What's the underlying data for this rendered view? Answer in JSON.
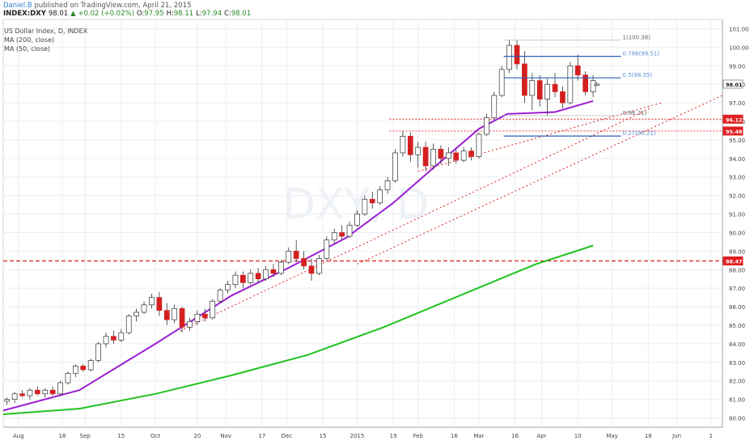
{
  "header": {
    "author": "Daniel.B",
    "published": "published on TradingView.com, April 21, 2015",
    "symbol": "INDEX:DXY",
    "last": "98.01",
    "change": "▲ +0.02 (+0.02%)",
    "o_label": "O:",
    "o": "97.95",
    "h_label": "H:",
    "h": "98.11",
    "l_label": "L:",
    "l": "97.94",
    "c_label": "C:",
    "c": "98.01"
  },
  "legend": {
    "title": "US Dollar Index, D, INDEX",
    "ma200": "MA (200, close)",
    "ma50": "MA (50, close)"
  },
  "watermark": "DXY, D",
  "colors": {
    "up": "#ffffff",
    "down": "#d42020",
    "wick": "#333333",
    "ma50": "#9b1fd3",
    "ma200": "#1fc21f",
    "hline": "#e02020",
    "fib": "#2a5fb8",
    "fib_label": "#5b8fd8",
    "grid": "#e9eef3"
  },
  "chart_data": {
    "type": "candlestick",
    "title": "US Dollar Index, D, INDEX",
    "xlabel": "",
    "ylabel": "",
    "ylim": [
      79.5,
      101.5
    ],
    "yticks": [
      80.0,
      81.0,
      82.0,
      83.0,
      84.0,
      85.0,
      86.0,
      87.0,
      88.0,
      89.0,
      90.0,
      91.0,
      92.0,
      93.0,
      94.0,
      95.0,
      96.0,
      97.0,
      98.0,
      99.0,
      100.0,
      101.0
    ],
    "xticks": [
      "Aug",
      "18",
      "Sep",
      "15",
      "Oct",
      "20",
      "Nov",
      "17",
      "Dec",
      "15",
      "2015",
      "19",
      "Feb",
      "16",
      "Mar",
      "16",
      "Apr",
      "10",
      "May",
      "18",
      "Jun",
      "1"
    ],
    "xtick_pos": [
      8,
      31,
      43,
      62,
      80,
      102,
      117,
      136,
      149,
      168,
      186,
      205,
      218,
      237,
      250,
      269,
      283,
      302,
      320,
      339,
      354,
      372
    ],
    "x_range": [
      0,
      378
    ],
    "last_bar": 312,
    "price_marks": [
      {
        "label": "98.01",
        "value": 98.01,
        "style": "last"
      },
      {
        "label": "96.12",
        "value": 96.12,
        "style": "red"
      },
      {
        "label": "95.48",
        "value": 95.48,
        "style": "red"
      },
      {
        "label": "88.47",
        "value": 88.47,
        "style": "red"
      }
    ],
    "horizontal_lines": [
      {
        "value": 96.12,
        "from": 203
      },
      {
        "value": 95.48,
        "from": 203
      },
      {
        "value": 88.47,
        "from": 0
      }
    ],
    "trendlines": [
      {
        "x1": 93,
        "y1": 84.7,
        "x2": 340,
        "y2": 96.7
      },
      {
        "x1": 218,
        "y1": 93.3,
        "x2": 346,
        "y2": 97.0
      },
      {
        "x1": 186,
        "y1": 88.3,
        "x2": 378,
        "y2": 97.4
      }
    ],
    "fib_levels": [
      {
        "label": "1(100.38)",
        "value": 100.38,
        "from": 263
      },
      {
        "label": "0.786(99.51)",
        "value": 99.51,
        "from": 263
      },
      {
        "label": "0.5(98.35)",
        "value": 98.35,
        "from": 263
      },
      {
        "label": "0(96.31)",
        "value": 96.31,
        "from": 263
      },
      {
        "label": "0.27(95.21)",
        "value": 95.21,
        "from": 263
      }
    ],
    "ma50": {
      "name": "MA (50, close)",
      "x": [
        0,
        40,
        80,
        120,
        150,
        180,
        205,
        225,
        250,
        265,
        290,
        310
      ],
      "y": [
        80.4,
        81.5,
        84.0,
        86.6,
        88.1,
        89.7,
        91.6,
        93.4,
        95.6,
        96.4,
        96.5,
        97.1
      ]
    },
    "ma200": {
      "name": "MA (200, close)",
      "x": [
        0,
        40,
        80,
        120,
        160,
        200,
        240,
        280,
        310
      ],
      "y": [
        80.2,
        80.5,
        81.3,
        82.3,
        83.4,
        84.9,
        86.6,
        88.3,
        89.3
      ]
    },
    "candles": [
      {
        "x": 2,
        "o": 80.9,
        "h": 81.1,
        "l": 80.7,
        "c": 81.0
      },
      {
        "x": 6,
        "o": 81.0,
        "h": 81.4,
        "l": 80.8,
        "c": 81.3
      },
      {
        "x": 10,
        "o": 81.3,
        "h": 81.5,
        "l": 81.1,
        "c": 81.2
      },
      {
        "x": 14,
        "o": 81.2,
        "h": 81.6,
        "l": 81.0,
        "c": 81.5
      },
      {
        "x": 18,
        "o": 81.5,
        "h": 81.7,
        "l": 81.2,
        "c": 81.3
      },
      {
        "x": 22,
        "o": 81.3,
        "h": 81.6,
        "l": 81.1,
        "c": 81.5
      },
      {
        "x": 26,
        "o": 81.5,
        "h": 81.7,
        "l": 81.2,
        "c": 81.3
      },
      {
        "x": 30,
        "o": 81.3,
        "h": 82.0,
        "l": 81.2,
        "c": 81.9
      },
      {
        "x": 34,
        "o": 81.9,
        "h": 82.5,
        "l": 81.8,
        "c": 82.4
      },
      {
        "x": 38,
        "o": 82.4,
        "h": 82.9,
        "l": 82.2,
        "c": 82.8
      },
      {
        "x": 42,
        "o": 82.8,
        "h": 82.9,
        "l": 82.5,
        "c": 82.6
      },
      {
        "x": 46,
        "o": 82.6,
        "h": 83.2,
        "l": 82.5,
        "c": 83.1
      },
      {
        "x": 50,
        "o": 83.1,
        "h": 84.1,
        "l": 83.0,
        "c": 84.0
      },
      {
        "x": 54,
        "o": 84.0,
        "h": 84.6,
        "l": 83.8,
        "c": 84.4
      },
      {
        "x": 58,
        "o": 84.4,
        "h": 84.7,
        "l": 84.0,
        "c": 84.2
      },
      {
        "x": 62,
        "o": 84.2,
        "h": 84.8,
        "l": 84.1,
        "c": 84.6
      },
      {
        "x": 66,
        "o": 84.6,
        "h": 85.6,
        "l": 84.5,
        "c": 85.5
      },
      {
        "x": 70,
        "o": 85.5,
        "h": 85.9,
        "l": 85.2,
        "c": 85.7
      },
      {
        "x": 74,
        "o": 85.7,
        "h": 86.3,
        "l": 85.6,
        "c": 86.1
      },
      {
        "x": 78,
        "o": 86.1,
        "h": 86.7,
        "l": 85.9,
        "c": 86.5
      },
      {
        "x": 82,
        "o": 86.5,
        "h": 86.8,
        "l": 85.5,
        "c": 85.8
      },
      {
        "x": 86,
        "o": 85.8,
        "h": 86.2,
        "l": 85.0,
        "c": 85.3
      },
      {
        "x": 90,
        "o": 85.3,
        "h": 86.1,
        "l": 85.1,
        "c": 85.9
      },
      {
        "x": 94,
        "o": 85.9,
        "h": 86.0,
        "l": 84.6,
        "c": 84.9
      },
      {
        "x": 98,
        "o": 84.9,
        "h": 85.4,
        "l": 84.7,
        "c": 85.2
      },
      {
        "x": 102,
        "o": 85.2,
        "h": 85.8,
        "l": 85.0,
        "c": 85.6
      },
      {
        "x": 106,
        "o": 85.6,
        "h": 85.9,
        "l": 85.2,
        "c": 85.4
      },
      {
        "x": 110,
        "o": 85.4,
        "h": 86.4,
        "l": 85.3,
        "c": 86.3
      },
      {
        "x": 114,
        "o": 86.3,
        "h": 87.0,
        "l": 86.2,
        "c": 86.9
      },
      {
        "x": 118,
        "o": 86.9,
        "h": 87.4,
        "l": 86.7,
        "c": 87.2
      },
      {
        "x": 122,
        "o": 87.2,
        "h": 87.9,
        "l": 87.0,
        "c": 87.7
      },
      {
        "x": 126,
        "o": 87.7,
        "h": 87.9,
        "l": 87.0,
        "c": 87.3
      },
      {
        "x": 130,
        "o": 87.3,
        "h": 88.0,
        "l": 87.2,
        "c": 87.8
      },
      {
        "x": 134,
        "o": 87.8,
        "h": 88.1,
        "l": 87.3,
        "c": 87.5
      },
      {
        "x": 138,
        "o": 87.5,
        "h": 88.2,
        "l": 87.4,
        "c": 88.0
      },
      {
        "x": 142,
        "o": 88.0,
        "h": 88.3,
        "l": 87.6,
        "c": 87.8
      },
      {
        "x": 146,
        "o": 87.8,
        "h": 88.5,
        "l": 87.7,
        "c": 88.4
      },
      {
        "x": 150,
        "o": 88.4,
        "h": 89.2,
        "l": 88.3,
        "c": 89.0
      },
      {
        "x": 154,
        "o": 89.0,
        "h": 89.6,
        "l": 88.4,
        "c": 88.6
      },
      {
        "x": 158,
        "o": 88.6,
        "h": 89.0,
        "l": 88.0,
        "c": 88.2
      },
      {
        "x": 162,
        "o": 88.2,
        "h": 88.6,
        "l": 87.4,
        "c": 87.8
      },
      {
        "x": 166,
        "o": 87.8,
        "h": 88.8,
        "l": 87.7,
        "c": 88.6
      },
      {
        "x": 170,
        "o": 88.6,
        "h": 89.8,
        "l": 88.5,
        "c": 89.6
      },
      {
        "x": 174,
        "o": 89.6,
        "h": 90.2,
        "l": 89.4,
        "c": 90.0
      },
      {
        "x": 178,
        "o": 90.0,
        "h": 90.4,
        "l": 89.6,
        "c": 89.8
      },
      {
        "x": 182,
        "o": 89.8,
        "h": 90.6,
        "l": 89.7,
        "c": 90.4
      },
      {
        "x": 186,
        "o": 90.4,
        "h": 91.2,
        "l": 90.3,
        "c": 91.0
      },
      {
        "x": 190,
        "o": 91.0,
        "h": 92.0,
        "l": 90.9,
        "c": 91.8
      },
      {
        "x": 194,
        "o": 91.8,
        "h": 92.2,
        "l": 91.3,
        "c": 91.6
      },
      {
        "x": 198,
        "o": 91.6,
        "h": 92.5,
        "l": 91.5,
        "c": 92.3
      },
      {
        "x": 202,
        "o": 92.3,
        "h": 93.0,
        "l": 92.1,
        "c": 92.8
      },
      {
        "x": 206,
        "o": 92.8,
        "h": 94.5,
        "l": 92.7,
        "c": 94.3
      },
      {
        "x": 210,
        "o": 94.3,
        "h": 95.5,
        "l": 94.1,
        "c": 95.2
      },
      {
        "x": 214,
        "o": 95.2,
        "h": 95.4,
        "l": 93.8,
        "c": 94.2
      },
      {
        "x": 218,
        "o": 94.2,
        "h": 94.9,
        "l": 93.5,
        "c": 94.6
      },
      {
        "x": 222,
        "o": 94.6,
        "h": 94.9,
        "l": 93.3,
        "c": 93.6
      },
      {
        "x": 226,
        "o": 93.6,
        "h": 94.8,
        "l": 93.4,
        "c": 94.5
      },
      {
        "x": 230,
        "o": 94.5,
        "h": 94.7,
        "l": 93.7,
        "c": 94.0
      },
      {
        "x": 234,
        "o": 94.0,
        "h": 94.6,
        "l": 93.6,
        "c": 94.3
      },
      {
        "x": 238,
        "o": 94.3,
        "h": 94.5,
        "l": 93.7,
        "c": 93.9
      },
      {
        "x": 242,
        "o": 93.9,
        "h": 94.6,
        "l": 93.8,
        "c": 94.4
      },
      {
        "x": 246,
        "o": 94.4,
        "h": 94.6,
        "l": 93.9,
        "c": 94.1
      },
      {
        "x": 250,
        "o": 94.1,
        "h": 95.4,
        "l": 94.0,
        "c": 95.3
      },
      {
        "x": 254,
        "o": 95.3,
        "h": 96.4,
        "l": 95.2,
        "c": 96.2
      },
      {
        "x": 258,
        "o": 96.2,
        "h": 97.6,
        "l": 96.1,
        "c": 97.4
      },
      {
        "x": 262,
        "o": 97.4,
        "h": 99.0,
        "l": 97.3,
        "c": 98.8
      },
      {
        "x": 266,
        "o": 98.8,
        "h": 100.4,
        "l": 98.6,
        "c": 100.1
      },
      {
        "x": 270,
        "o": 100.1,
        "h": 100.38,
        "l": 98.8,
        "c": 99.1
      },
      {
        "x": 274,
        "o": 99.1,
        "h": 99.8,
        "l": 97.0,
        "c": 97.4
      },
      {
        "x": 278,
        "o": 97.4,
        "h": 98.6,
        "l": 96.6,
        "c": 98.2
      },
      {
        "x": 282,
        "o": 98.2,
        "h": 98.5,
        "l": 96.8,
        "c": 97.2
      },
      {
        "x": 286,
        "o": 97.2,
        "h": 98.3,
        "l": 96.3,
        "c": 98.0
      },
      {
        "x": 290,
        "o": 98.0,
        "h": 98.6,
        "l": 97.3,
        "c": 97.6
      },
      {
        "x": 294,
        "o": 97.6,
        "h": 97.9,
        "l": 96.7,
        "c": 97.0
      },
      {
        "x": 298,
        "o": 97.0,
        "h": 99.2,
        "l": 96.9,
        "c": 99.0
      },
      {
        "x": 302,
        "o": 99.0,
        "h": 99.6,
        "l": 98.2,
        "c": 98.5
      },
      {
        "x": 306,
        "o": 98.5,
        "h": 98.7,
        "l": 97.4,
        "c": 97.6
      },
      {
        "x": 310,
        "o": 97.6,
        "h": 98.5,
        "l": 97.3,
        "c": 98.2
      },
      {
        "x": 312,
        "o": 97.95,
        "h": 98.11,
        "l": 97.94,
        "c": 98.01
      }
    ]
  }
}
